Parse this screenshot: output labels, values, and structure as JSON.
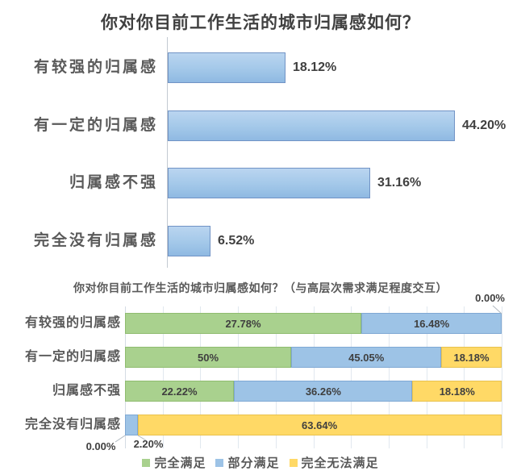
{
  "chart_data": [
    {
      "type": "bar",
      "orientation": "horizontal",
      "title": "你对你目前工作生活的城市归属感如何？",
      "categories": [
        "有较强的归属感",
        "有一定的归属感",
        "归属感不强",
        "完全没有归属感"
      ],
      "values": [
        18.12,
        44.2,
        31.16,
        6.52
      ],
      "value_labels": [
        "18.12%",
        "44.20%",
        "31.16%",
        "6.52%"
      ],
      "xlim": [
        0,
        50
      ],
      "grid": false,
      "legend_position": "none",
      "bar_fill": "#9DC3E6",
      "bar_border": "#7193C5"
    },
    {
      "type": "bar",
      "orientation": "horizontal",
      "stacked": true,
      "normalized_to_100pct": true,
      "title": "你对你目前工作生活的城市归属感如何？（与高层次需求满足程度交互）",
      "categories": [
        "有较强的归属感",
        "有一定的归属感",
        "归属感不强",
        "完全没有归属感"
      ],
      "series": [
        {
          "name": "完全满足",
          "color": "#A9D18E",
          "border": "#8FBC6F",
          "values": [
            27.78,
            50,
            22.22,
            0
          ],
          "labels": [
            "27.78%",
            "50%",
            "22.22%",
            "0.00%"
          ]
        },
        {
          "name": "部分满足",
          "color": "#9DC3E6",
          "border": "#7FA8D4",
          "values": [
            16.48,
            45.05,
            36.26,
            2.2
          ],
          "labels": [
            "16.48%",
            "45.05%",
            "36.26%",
            "2.20%"
          ]
        },
        {
          "name": "完全无法满足",
          "color": "#FFD966",
          "border": "#E8C24E",
          "values": [
            0,
            18.18,
            18.18,
            63.64
          ],
          "labels": [
            "0.00%",
            "18.18%",
            "18.18%",
            "63.64%"
          ]
        }
      ],
      "grid": true,
      "legend_position": "bottom",
      "legend": [
        "完全满足",
        "部分满足",
        "完全无法满足"
      ]
    }
  ]
}
